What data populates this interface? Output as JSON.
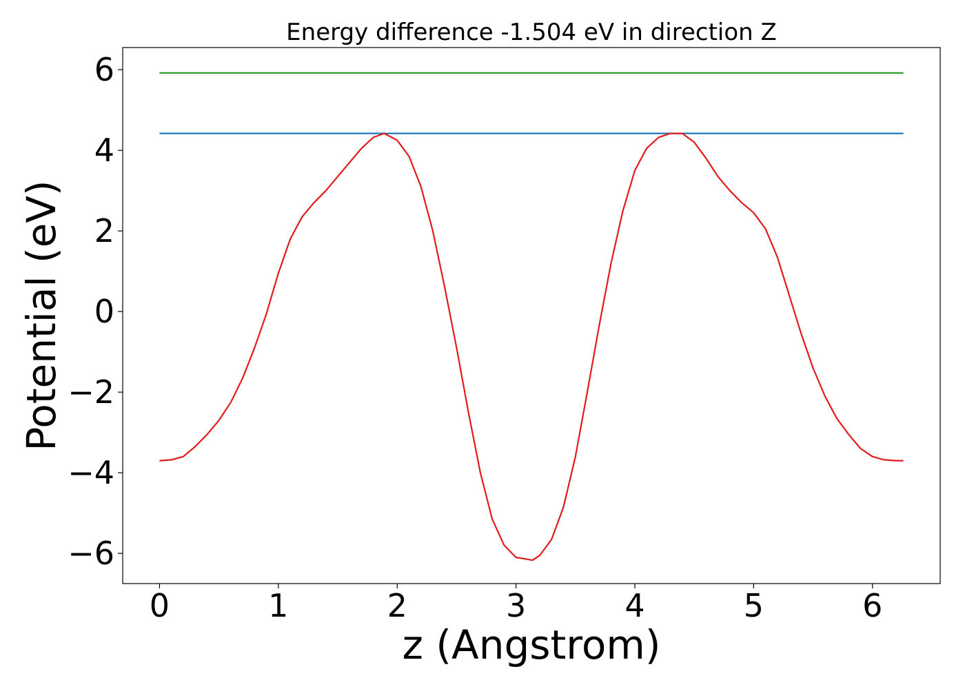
{
  "chart_data": {
    "type": "line",
    "title": "Energy difference -1.504 eV in direction Z",
    "xlabel": "z (Angstrom)",
    "ylabel": "Potential (eV)",
    "xlim": [
      -0.31,
      6.57
    ],
    "ylim": [
      -6.75,
      6.55
    ],
    "x_ticks": [
      0,
      1,
      2,
      3,
      4,
      5,
      6
    ],
    "x_tick_labels": [
      "0",
      "1",
      "2",
      "3",
      "4",
      "5",
      "6"
    ],
    "y_ticks": [
      -6,
      -4,
      -2,
      0,
      2,
      4,
      6
    ],
    "y_tick_labels": [
      "−6",
      "−4",
      "−2",
      "0",
      "2",
      "4",
      "6"
    ],
    "grid": false,
    "series": [
      {
        "color": "#2ca02c",
        "x": [
          0.0,
          6.26
        ],
        "y": [
          5.92,
          5.92
        ]
      },
      {
        "color": "#1f77b4",
        "x": [
          0.0,
          6.26
        ],
        "y": [
          4.42,
          4.42
        ]
      },
      {
        "color": "#e31a1c",
        "x": [
          0.0,
          0.1,
          0.2,
          0.3,
          0.4,
          0.5,
          0.6,
          0.7,
          0.8,
          0.9,
          1.0,
          1.1,
          1.2,
          1.3,
          1.4,
          1.5,
          1.6,
          1.7,
          1.8,
          1.89,
          2.0,
          2.1,
          2.2,
          2.3,
          2.4,
          2.5,
          2.6,
          2.7,
          2.8,
          2.9,
          3.0,
          3.1,
          3.14,
          3.2,
          3.3,
          3.4,
          3.5,
          3.6,
          3.7,
          3.8,
          3.9,
          4.0,
          4.1,
          4.2,
          4.3,
          4.4,
          4.5,
          4.6,
          4.7,
          4.8,
          4.9,
          5.0,
          5.1,
          5.2,
          5.3,
          5.4,
          5.5,
          5.6,
          5.7,
          5.8,
          5.9,
          6.0,
          6.1,
          6.2,
          6.26
        ],
        "y": [
          -3.7,
          -3.68,
          -3.6,
          -3.35,
          -3.05,
          -2.7,
          -2.25,
          -1.65,
          -0.9,
          -0.05,
          0.95,
          1.8,
          2.35,
          2.7,
          3.0,
          3.35,
          3.7,
          4.05,
          4.32,
          4.42,
          4.25,
          3.85,
          3.1,
          2.0,
          0.6,
          -0.9,
          -2.5,
          -4.0,
          -5.15,
          -5.8,
          -6.1,
          -6.15,
          -6.17,
          -6.05,
          -5.65,
          -4.85,
          -3.6,
          -2.0,
          -0.35,
          1.2,
          2.5,
          3.5,
          4.05,
          4.32,
          4.42,
          4.42,
          4.2,
          3.8,
          3.35,
          3.0,
          2.7,
          2.45,
          2.05,
          1.35,
          0.4,
          -0.55,
          -1.4,
          -2.1,
          -2.65,
          -3.05,
          -3.4,
          -3.6,
          -3.68,
          -3.7,
          -3.7
        ]
      }
    ]
  }
}
